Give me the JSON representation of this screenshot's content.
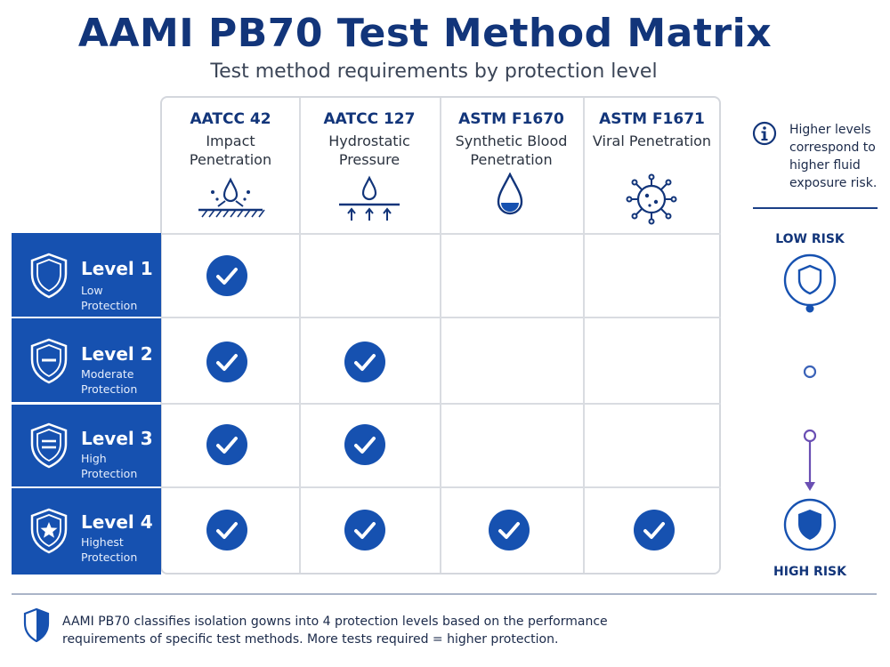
{
  "title": "AAMI PB70 Test Method Matrix",
  "subtitle": "Test method requirements by protection level",
  "columns": [
    {
      "code": "AATCC 42",
      "name": "Impact Penetration",
      "icon": "impact-spray-icon"
    },
    {
      "code": "AATCC 127",
      "name": "Hydrostatic Pressure",
      "icon": "hydrostatic-drop-icon"
    },
    {
      "code": "ASTM F1670",
      "name": "Synthetic Blood Penetration",
      "icon": "blood-drop-icon"
    },
    {
      "code": "ASTM F1671",
      "name": "Viral Penetration",
      "icon": "virus-icon"
    }
  ],
  "rows": [
    {
      "level": "Level 1",
      "desc": "Low Protection",
      "icon": "shield-icon",
      "checks": [
        true,
        false,
        false,
        false
      ]
    },
    {
      "level": "Level 2",
      "desc": "Moderate Protection",
      "icon": "shield-minus-icon",
      "checks": [
        true,
        true,
        false,
        false
      ]
    },
    {
      "level": "Level 3",
      "desc": "High Protection",
      "icon": "shield-equals-icon",
      "checks": [
        true,
        true,
        false,
        false
      ]
    },
    {
      "level": "Level 4",
      "desc": "Highest Protection",
      "icon": "shield-star-icon",
      "checks": [
        true,
        true,
        true,
        true
      ]
    }
  ],
  "legend": {
    "info_text": "Higher levels correspond to higher fluid exposure risk.",
    "low_risk": "LOW RISK",
    "high_risk": "HIGH RISK"
  },
  "footer": {
    "text": "AAMI PB70 classifies isolation gowns into 4 protection levels based on the performance requirements of specific test methods. More tests required = higher protection."
  },
  "colors": {
    "primary": "#1651b0",
    "title": "#12357a",
    "accent_purple": "#6a4fb3"
  }
}
